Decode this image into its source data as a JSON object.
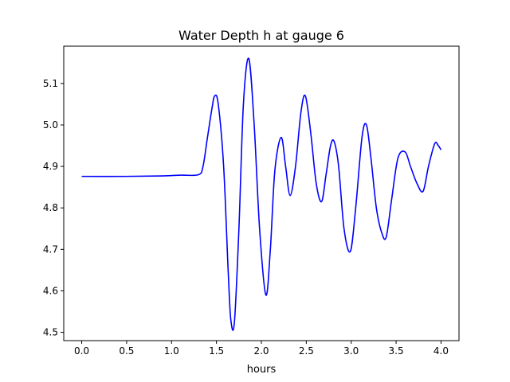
{
  "chart_data": {
    "type": "line",
    "title": "Water Depth h at gauge 6",
    "xlabel": "hours",
    "ylabel": "",
    "xlim": [
      -0.2,
      4.2
    ],
    "ylim": [
      4.48,
      5.19
    ],
    "grid": false,
    "legend": "none",
    "xticks": [
      0.0,
      0.5,
      1.0,
      1.5,
      2.0,
      2.5,
      3.0,
      3.5,
      4.0
    ],
    "xtick_labels": [
      "0.0",
      "0.5",
      "1.0",
      "1.5",
      "2.0",
      "2.5",
      "3.0",
      "3.5",
      "4.0"
    ],
    "yticks": [
      4.5,
      4.6,
      4.7,
      4.8,
      4.9,
      5.0,
      5.1
    ],
    "ytick_labels": [
      "4.5",
      "4.6",
      "4.7",
      "4.8",
      "4.9",
      "5.0",
      "5.1"
    ],
    "series": [
      {
        "color": "#0000ff",
        "x": [
          0.0,
          0.5,
          0.9,
          1.1,
          1.3,
          1.35,
          1.4,
          1.45,
          1.48,
          1.52,
          1.58,
          1.63,
          1.66,
          1.7,
          1.75,
          1.8,
          1.86,
          1.92,
          1.98,
          2.05,
          2.1,
          2.15,
          2.22,
          2.27,
          2.32,
          2.38,
          2.44,
          2.49,
          2.55,
          2.61,
          2.67,
          2.72,
          2.77,
          2.81,
          2.86,
          2.92,
          2.99,
          3.05,
          3.12,
          3.17,
          3.22,
          3.28,
          3.34,
          3.39,
          3.45,
          3.52,
          3.6,
          3.66,
          3.73,
          3.8,
          3.86,
          3.93,
          3.97,
          4.0
        ],
        "y": [
          4.876,
          4.876,
          4.877,
          4.879,
          4.88,
          4.9,
          4.97,
          5.04,
          5.07,
          5.05,
          4.9,
          4.65,
          4.53,
          4.525,
          4.75,
          5.05,
          5.16,
          5.0,
          4.75,
          4.59,
          4.7,
          4.89,
          4.97,
          4.9,
          4.83,
          4.9,
          5.03,
          5.07,
          4.98,
          4.86,
          4.815,
          4.88,
          4.95,
          4.96,
          4.9,
          4.75,
          4.695,
          4.8,
          4.97,
          5.0,
          4.92,
          4.8,
          4.74,
          4.73,
          4.82,
          4.92,
          4.935,
          4.9,
          4.86,
          4.84,
          4.9,
          4.955,
          4.95,
          4.94
        ]
      }
    ]
  }
}
